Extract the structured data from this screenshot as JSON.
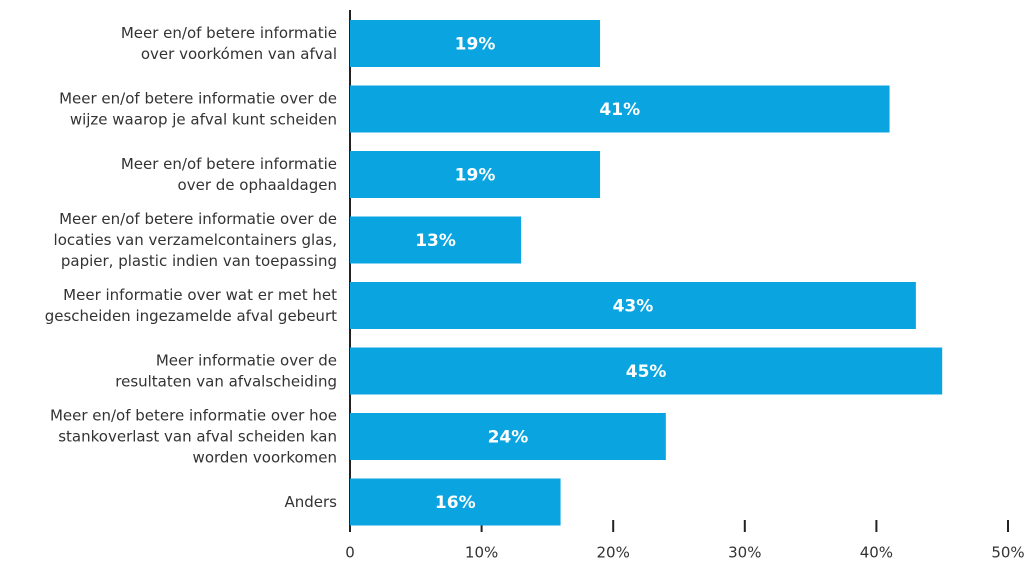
{
  "chart_data": {
    "type": "barh",
    "categories": [
      "Meer en/of betere informatie\nover voorkómen van afval",
      "Meer en/of betere informatie over de\nwijze waarop je afval kunt scheiden",
      "Meer en/of betere informatie\nover de ophaaldagen",
      "Meer en/of betere informatie over de\nlocaties van verzamelcontainers glas,\npapier, plastic indien van toepassing",
      "Meer informatie over wat er met het\ngescheiden ingezamelde afval gebeurt",
      "Meer informatie over de\nresultaten van afvalscheiding",
      "Meer en/of betere informatie over hoe\nstankoverlast van afval scheiden kan\nworden voorkomen",
      "Anders"
    ],
    "values": [
      19,
      41,
      19,
      13,
      43,
      45,
      24,
      16
    ],
    "value_labels": [
      "19%",
      "41%",
      "19%",
      "13%",
      "43%",
      "45%",
      "24%",
      "16%"
    ],
    "color": "#0aa5e0",
    "xlim": [
      0,
      50
    ],
    "xticks": [
      0,
      {
        "value": 10,
        "label": "10%"
      },
      {
        "value": 20,
        "label": "20%"
      },
      {
        "value": 30,
        "label": "30%"
      },
      {
        "value": 40,
        "label": "40%"
      },
      {
        "value": 50,
        "label": "50%"
      }
    ]
  }
}
